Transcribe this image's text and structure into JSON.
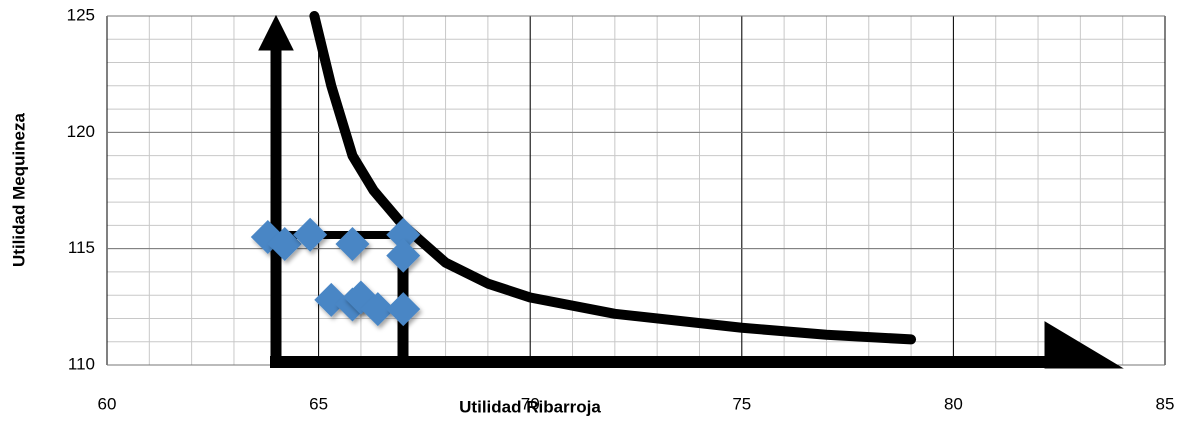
{
  "chart_data": {
    "type": "scatter",
    "xlabel": "Utilidad Ribarroja",
    "ylabel": "Utilidad Mequineza",
    "xlim": [
      60,
      85
    ],
    "xticks": [
      60,
      65,
      70,
      75,
      80,
      85
    ],
    "ylim": [
      110,
      125
    ],
    "yticks": [
      110,
      115,
      120,
      125
    ],
    "grid": true,
    "xminor_step": 1,
    "yminor_step": 1,
    "points": {
      "color": "#4a86c5",
      "x": [
        63.8,
        64.2,
        64.8,
        65.8,
        67.0,
        67.0,
        65.3,
        65.8,
        66.0,
        66.4,
        67.0
      ],
      "y": [
        115.5,
        115.2,
        115.6,
        115.2,
        115.6,
        114.7,
        112.8,
        112.6,
        112.9,
        112.4,
        112.4
      ]
    },
    "curve": {
      "color": "#000000",
      "x": [
        64.9,
        65.3,
        65.8,
        66.3,
        67.0,
        68.0,
        69.0,
        70.0,
        72.0,
        75.0,
        77.0,
        79.0
      ],
      "y": [
        125,
        122,
        119,
        117.5,
        116.0,
        114.4,
        113.5,
        112.9,
        112.2,
        111.6,
        111.3,
        111.1
      ]
    }
  }
}
